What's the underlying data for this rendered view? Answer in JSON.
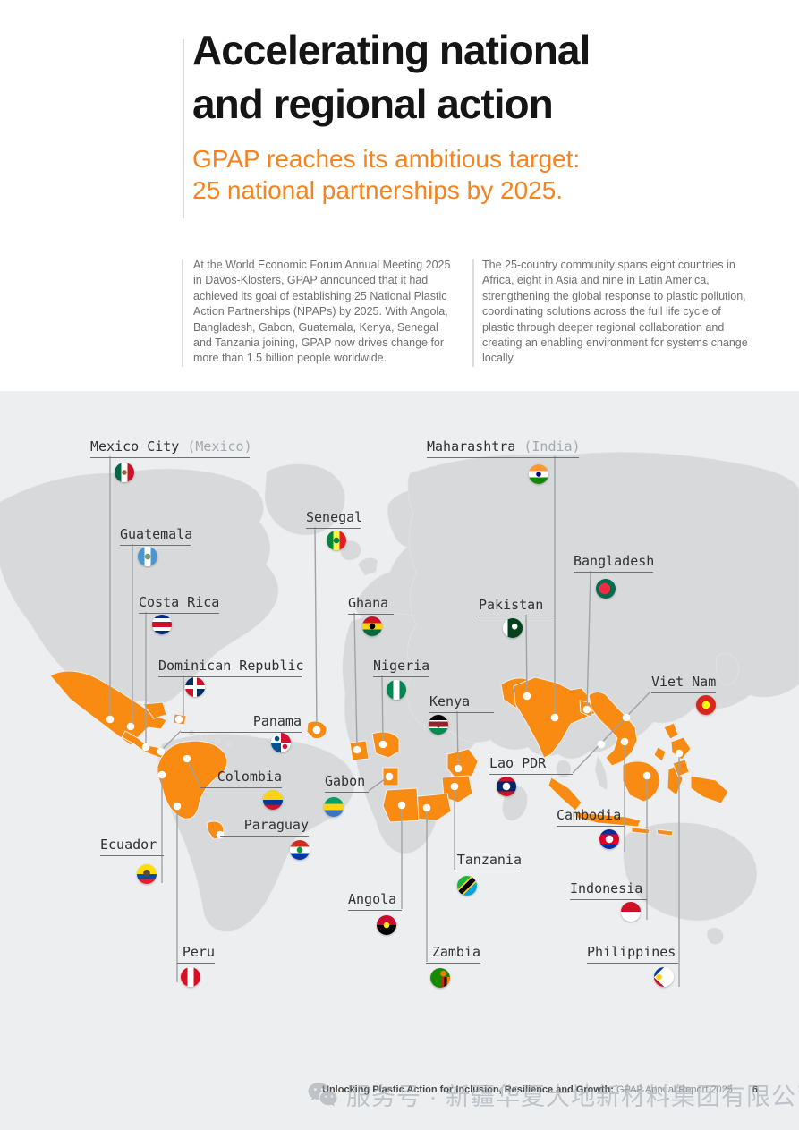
{
  "header": {
    "title_line1": "Accelerating national",
    "title_line2": "and regional action",
    "subtitle_line1": "GPAP reaches its ambitious target:",
    "subtitle_line2": "25 national partnerships by 2025.",
    "accent_color": "#f5831f"
  },
  "intro": {
    "col1": "At the World Economic Forum Annual Meeting 2025 in Davos-Klosters, GPAP announced that it had achieved its goal of establishing 25 National Plastic Action Partnerships (NPAPs) by 2025. With Angola, Bangladesh, Gabon, Guatemala, Kenya, Senegal and Tanzania joining, GPAP now drives change for more than 1.5 billion people worldwide.",
    "col2": "The 25-country community spans eight countries in Africa, eight in Asia and nine in Latin America, strengthening the global response to plastic pollution, coordinating solutions across the full life cycle of plastic through deeper regional collaboration and creating an enabling environment for systems change locally."
  },
  "map": {
    "colors": {
      "background": "#eceef0",
      "land": "#d7d9db",
      "highlight": "#f98b12",
      "connector": "#9fa3a7",
      "pin": "#ffffff"
    },
    "countries": [
      {
        "id": "mexico-city",
        "label": "Mexico City",
        "suffix": "(Mexico)",
        "flag": "flag-mexico"
      },
      {
        "id": "guatemala",
        "label": "Guatemala",
        "flag": "flag-guatemala"
      },
      {
        "id": "costa-rica",
        "label": "Costa Rica",
        "flag": "flag-costa-rica"
      },
      {
        "id": "dominican-republic",
        "label": "Dominican Republic",
        "flag": "flag-dominican-republic"
      },
      {
        "id": "panama",
        "label": "Panama",
        "flag": "flag-panama"
      },
      {
        "id": "colombia",
        "label": "Colombia",
        "flag": "flag-colombia"
      },
      {
        "id": "paraguay",
        "label": "Paraguay",
        "flag": "flag-paraguay"
      },
      {
        "id": "ecuador",
        "label": "Ecuador",
        "flag": "flag-ecuador"
      },
      {
        "id": "peru",
        "label": "Peru",
        "flag": "flag-peru"
      },
      {
        "id": "senegal",
        "label": "Senegal",
        "flag": "flag-senegal"
      },
      {
        "id": "ghana",
        "label": "Ghana",
        "flag": "flag-ghana"
      },
      {
        "id": "nigeria",
        "label": "Nigeria",
        "flag": "flag-nigeria"
      },
      {
        "id": "kenya",
        "label": "Kenya",
        "flag": "flag-kenya"
      },
      {
        "id": "gabon",
        "label": "Gabon",
        "flag": "flag-gabon"
      },
      {
        "id": "angola",
        "label": "Angola",
        "flag": "flag-angola"
      },
      {
        "id": "tanzania",
        "label": "Tanzania",
        "flag": "flag-tanzania"
      },
      {
        "id": "zambia",
        "label": "Zambia",
        "flag": "flag-zambia"
      },
      {
        "id": "maharashtra",
        "label": "Maharashtra",
        "suffix": "(India)",
        "flag": "flag-india"
      },
      {
        "id": "bangladesh",
        "label": "Bangladesh",
        "flag": "flag-bangladesh"
      },
      {
        "id": "pakistan",
        "label": "Pakistan",
        "flag": "flag-pakistan"
      },
      {
        "id": "lao-pdr",
        "label": "Lao PDR",
        "flag": "flag-lao"
      },
      {
        "id": "viet-nam",
        "label": "Viet Nam",
        "flag": "flag-vietnam"
      },
      {
        "id": "cambodia",
        "label": "Cambodia",
        "flag": "flag-cambodia"
      },
      {
        "id": "indonesia",
        "label": "Indonesia",
        "flag": "flag-indonesia"
      },
      {
        "id": "philippines",
        "label": "Philippines",
        "flag": "flag-philippines"
      }
    ]
  },
  "footer": {
    "report_title": "Unlocking Plastic Action for Inclusion, Resilience and Growth:",
    "report_name": "GPAP Annual Report 2025",
    "page_number": "6"
  },
  "watermark": {
    "icon": "wechat-icon",
    "text": "服务号 · 新疆华夏大地新材料集团有限公司"
  }
}
